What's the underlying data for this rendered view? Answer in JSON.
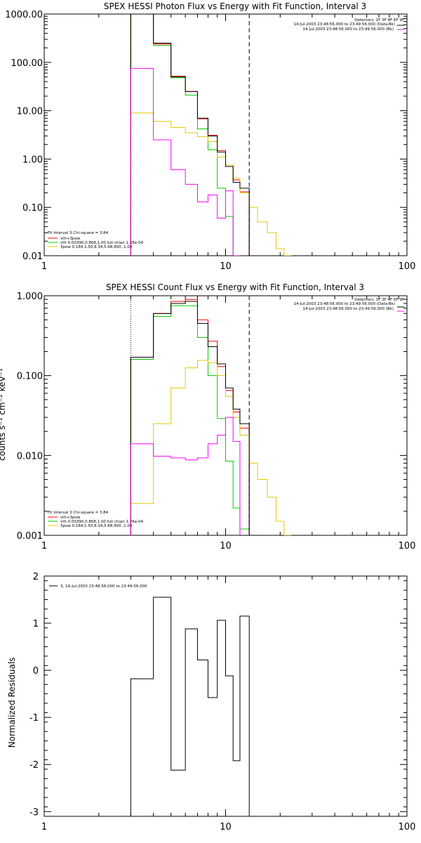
{
  "chart_data": [
    {
      "type": "line",
      "title": "SPEX HESSI Photon Flux vs Energy with Fit Function, Interval 3",
      "xscale": "log",
      "yscale": "log",
      "xlim": [
        1,
        100
      ],
      "ylim": [
        0.01,
        1000
      ],
      "xticks": [
        "1",
        "10",
        "100"
      ],
      "yticks": [
        "0.01",
        "0.10",
        "1.00",
        "10.00",
        "100.00",
        "1000.00"
      ],
      "info": [
        "Detectors: 1F 3F 4F 6F 9F",
        "14-Jul-2003 23:48:56.000 to 23:49:56.000 (Data-Bk)",
        "14-Jul-2003 23:48:56.000 to 23:49:56.000 (Bk)"
      ],
      "fit_text": [
        "Fit Interval 3   Chi-square = 3.84",
        "vth+3pow",
        "vth 0.00390,0.868,1.00  full chian 1.26e-04",
        "3pow 0.184,1.50,8.34,5.68,400.,1.00"
      ],
      "fit_range": [
        3,
        13.5
      ],
      "edges": [
        3,
        4,
        5,
        6,
        7,
        8,
        9,
        10,
        11,
        12,
        13.5,
        15,
        17,
        19,
        21,
        23
      ],
      "series": [
        {
          "name": "vth+3pow",
          "color": "#ff0000",
          "values": [
            1000,
            240,
            52,
            25,
            6.8,
            3.1,
            1.5,
            0.75,
            0.37,
            0.21
          ]
        },
        {
          "name": "vth",
          "color": "#00cc00",
          "values": [
            1000,
            225,
            48,
            21,
            4.2,
            1.55,
            0.25,
            0.065,
            0.01,
            0.005
          ]
        },
        {
          "name": "3pow",
          "color": "#e8c800",
          "values": [
            9,
            6,
            4.5,
            3.5,
            2.9,
            2.3,
            1.1,
            0.75,
            0.4,
            0.2,
            0.1,
            0.05,
            0.03,
            0.014,
            0.01
          ]
        },
        {
          "name": "",
          "color": "#000000",
          "values": [
            1000,
            250,
            50,
            25,
            7,
            3,
            1.4,
            0.7,
            0.33,
            0.25
          ]
        },
        {
          "name": "",
          "color": "#ff00ff",
          "values": [
            75,
            2.5,
            0.6,
            0.3,
            0.13,
            0.18,
            0.06,
            0.22,
            0.01,
            0.005
          ]
        }
      ]
    },
    {
      "type": "line",
      "title": "SPEX HESSI Count Flux vs Energy with Fit Function, Interval 3",
      "ylabel": "counts s⁻¹ cm⁻² keV⁻¹",
      "xscale": "log",
      "yscale": "log",
      "xlim": [
        1,
        100
      ],
      "ylim": [
        0.001,
        1
      ],
      "xticks": [
        "1",
        "10",
        "100"
      ],
      "yticks": [
        "0.001",
        "0.010",
        "0.100",
        "1.000"
      ],
      "info": [
        "Detectors: 1F 3F 4F 6F 9F",
        "14-Jul-2003 23:48:56.000 to 23:49:56.000 (Data-Bk)",
        "14-Jul-2003 23:48:56.000 to 23:49:56.000 (Bk)"
      ],
      "fit_text": [
        "Fit Interval 3   Chi-square = 3.84",
        "vth+3pow",
        "vth 0.00390,0.868,1.00  full chian 1.26e-04",
        "3pow 0.184,1.50,8.34,5.68,400.,1.00"
      ],
      "fit_range": [
        3,
        13.5
      ],
      "edges": [
        3,
        4,
        5,
        6,
        7,
        8,
        9,
        10,
        11,
        12,
        13.5,
        15,
        17,
        19,
        21,
        23
      ],
      "series": [
        {
          "name": "vth+3pow",
          "color": "#ff0000",
          "values": [
            0.17,
            0.6,
            0.85,
            0.9,
            0.5,
            0.27,
            0.13,
            0.065,
            0.035,
            0.022
          ]
        },
        {
          "name": "vth",
          "color": "#00cc00",
          "values": [
            0.16,
            0.55,
            0.75,
            0.75,
            0.3,
            0.1,
            0.029,
            0.0085,
            0.0022,
            0.0012
          ]
        },
        {
          "name": "3pow",
          "color": "#e8c800",
          "values": [
            0.0025,
            0.025,
            0.07,
            0.125,
            0.155,
            0.145,
            0.1,
            0.055,
            0.03,
            0.018,
            0.008,
            0.005,
            0.003,
            0.0015,
            0.001
          ]
        },
        {
          "name": "",
          "color": "#000000",
          "values": [
            0.17,
            0.6,
            0.8,
            0.85,
            0.45,
            0.23,
            0.14,
            0.07,
            0.038,
            0.025
          ]
        },
        {
          "name": "",
          "color": "#ff00ff",
          "values": [
            0.014,
            0.0098,
            0.0093,
            0.0088,
            0.0093,
            0.014,
            0.018,
            0.03,
            0.015,
            0.0009
          ]
        }
      ]
    },
    {
      "type": "line",
      "ylabel": "Normalized Residuals",
      "xscale": "log",
      "yscale": "linear",
      "xlim": [
        1,
        100
      ],
      "ylim": [
        -3.1,
        2
      ],
      "xticks": [
        "1",
        "10",
        "100"
      ],
      "yticks": [
        "-3",
        "-2",
        "-1",
        "0",
        "1",
        "2"
      ],
      "yticks_values": [
        -3,
        -2,
        -1,
        0,
        1,
        2
      ],
      "legend": [
        "3, 14-Jul-2003 23:48:56.000 to 23:49:56.000"
      ],
      "edges": [
        3,
        4,
        5,
        6,
        7,
        8,
        9,
        10,
        11,
        12,
        13.5
      ],
      "series": [
        {
          "name": "3, 14-Jul-2003 23:48:56.000 to 23:49:56.000",
          "color": "#000000",
          "values": [
            -0.18,
            1.55,
            -2.12,
            0.88,
            0.22,
            -0.58,
            1.06,
            -0.12,
            -1.92,
            1.15
          ]
        }
      ]
    }
  ]
}
